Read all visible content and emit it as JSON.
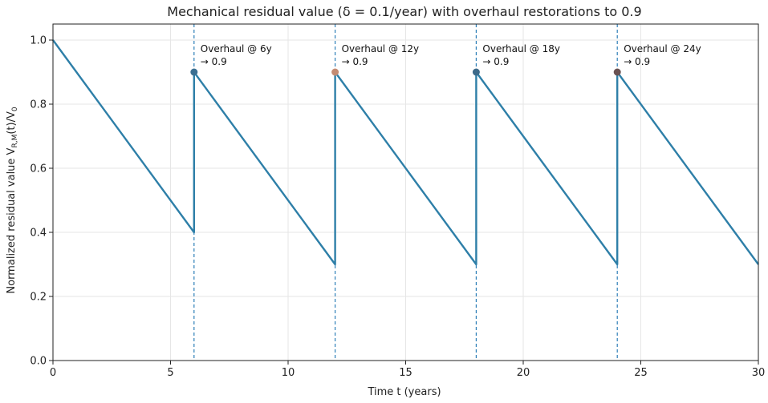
{
  "chart_data": {
    "type": "line",
    "title": "Mechanical residual value (δ = 0.1/year) with overhaul restorations to 0.9",
    "xlabel": "Time t (years)",
    "ylabel": "Normalized residual value V",
    "ylabel_sub": "R,M",
    "ylabel_mid": "(t)/V",
    "ylabel_sub2": "0",
    "xlim": [
      0,
      30
    ],
    "ylim": [
      0,
      1.05
    ],
    "x_ticks": [
      0,
      5,
      10,
      15,
      20,
      25,
      30
    ],
    "x_tick_labels": [
      "0",
      "5",
      "10",
      "15",
      "20",
      "25",
      "30"
    ],
    "y_ticks": [
      0.0,
      0.2,
      0.4,
      0.6,
      0.8,
      1.0
    ],
    "y_tick_labels": [
      "0.0",
      "0.2",
      "0.4",
      "0.6",
      "0.8",
      "1.0"
    ],
    "grid": true,
    "series": [
      {
        "color": "#2e7fa8",
        "x": [
          0,
          6,
          6,
          12,
          12,
          18,
          18,
          24,
          24,
          30
        ],
        "y": [
          1.0,
          0.4,
          0.9,
          0.3,
          0.9,
          0.3,
          0.9,
          0.3,
          0.9,
          0.3
        ]
      }
    ],
    "overhauls": [
      {
        "x": 6,
        "y": 0.9,
        "label_line1": "Overhaul @ 6y",
        "label_line2": "→ 0.9",
        "marker_color": "#3a6f92"
      },
      {
        "x": 12,
        "y": 0.9,
        "label_line1": "Overhaul @ 12y",
        "label_line2": "→ 0.9",
        "marker_color": "#c48b72"
      },
      {
        "x": 18,
        "y": 0.9,
        "label_line1": "Overhaul @ 18y",
        "label_line2": "→ 0.9",
        "marker_color": "#3d6a8a"
      },
      {
        "x": 24,
        "y": 0.9,
        "label_line1": "Overhaul @ 24y",
        "label_line2": "→ 0.9",
        "marker_color": "#6a5252"
      }
    ],
    "vline_color": "#2e7fb8"
  }
}
